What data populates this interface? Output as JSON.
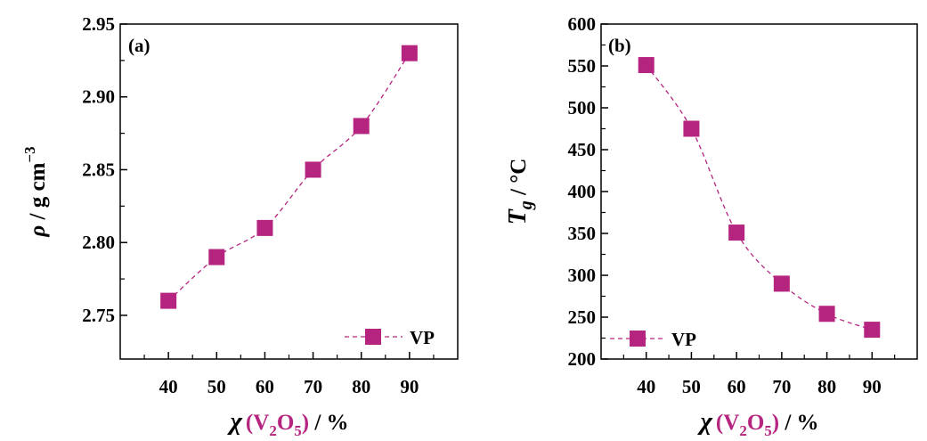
{
  "colors": {
    "series": "#b5247f",
    "axis": "#000000"
  },
  "chart_data": [
    {
      "type": "scatter",
      "panel_label": "(a)",
      "x": [
        40,
        50,
        60,
        70,
        80,
        90
      ],
      "series": [
        {
          "name": "VP",
          "values": [
            2.76,
            2.79,
            2.81,
            2.85,
            2.88,
            2.93
          ]
        }
      ],
      "xlim": [
        30,
        100
      ],
      "ylim": [
        2.72,
        2.95
      ],
      "xticks": [
        "40",
        "50",
        "60",
        "70",
        "80",
        "90"
      ],
      "yticks": [
        "2.75",
        "2.80",
        "2.85",
        "2.90",
        "2.95"
      ],
      "ytick_values": [
        2.75,
        2.8,
        2.85,
        2.9,
        2.95
      ],
      "xlabel": {
        "chi": "χ",
        "compound_v": "V",
        "sub2": "2",
        "compound_o": "O",
        "sub5": "5",
        "paren_open": "(",
        "paren_close": ")",
        "unit": " / %"
      },
      "ylabel": {
        "rho": "ρ",
        "unit": " / g cm",
        "exp": "−3"
      },
      "legend_placement": "bottom-right",
      "line_style": "dashed"
    },
    {
      "type": "scatter",
      "panel_label": "(b)",
      "x": [
        40,
        50,
        60,
        70,
        80,
        90
      ],
      "series": [
        {
          "name": "VP",
          "values": [
            551,
            475,
            351,
            290,
            254,
            235
          ]
        }
      ],
      "xlim": [
        30,
        100
      ],
      "ylim": [
        200,
        600
      ],
      "xticks": [
        "40",
        "50",
        "60",
        "70",
        "80",
        "90"
      ],
      "yticks": [
        "200",
        "250",
        "300",
        "350",
        "400",
        "450",
        "500",
        "550",
        "600"
      ],
      "ytick_values": [
        200,
        250,
        300,
        350,
        400,
        450,
        500,
        550,
        600
      ],
      "xlabel": {
        "chi": "χ",
        "compound_v": "V",
        "sub2": "2",
        "compound_o": "O",
        "sub5": "5",
        "paren_open": "(",
        "paren_close": ")",
        "unit": " / %"
      },
      "ylabel": {
        "t": "T",
        "sub": "g",
        "unit": " / °C"
      },
      "legend_placement": "bottom-left",
      "line_style": "dashed"
    }
  ]
}
